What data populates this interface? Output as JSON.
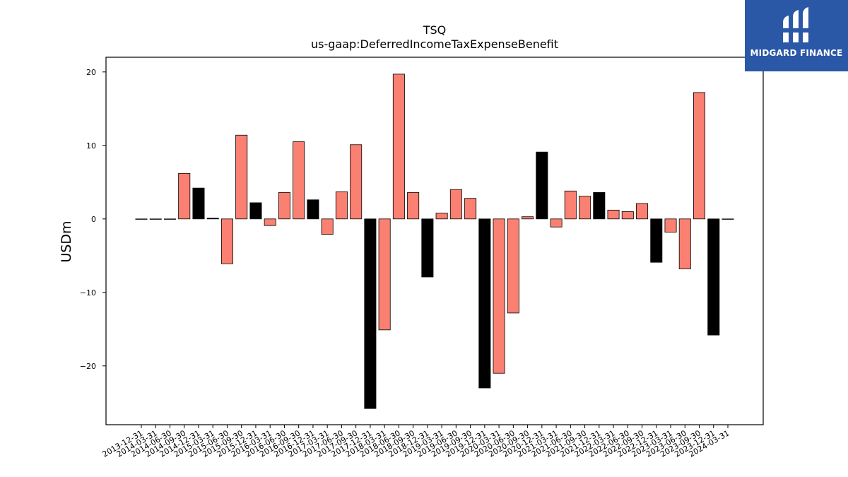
{
  "chart_data": {
    "type": "bar",
    "title": "TSQ",
    "subtitle": "us-gaap:DeferredIncomeTaxExpenseBenefit",
    "xlabel": "",
    "ylabel": "USDm",
    "ylim": [
      -28,
      22
    ],
    "yticks": [
      -20,
      -10,
      0,
      10,
      20
    ],
    "ytick_labels": [
      "−20",
      "−10",
      "0",
      "10",
      "20"
    ],
    "grid": false,
    "legend": "none",
    "categories": [
      "2013-12-31",
      "2014-03-31",
      "2014-06-30",
      "2014-09-30",
      "2014-12-31",
      "2015-03-31",
      "2015-06-30",
      "2015-09-30",
      "2015-12-31",
      "2016-03-31",
      "2016-06-30",
      "2016-09-30",
      "2016-12-31",
      "2017-03-31",
      "2017-06-30",
      "2017-09-30",
      "2017-12-31",
      "2018-03-31",
      "2018-06-30",
      "2018-09-30",
      "2018-12-31",
      "2019-03-31",
      "2019-06-30",
      "2019-09-30",
      "2019-12-31",
      "2020-03-31",
      "2020-06-30",
      "2020-09-30",
      "2020-12-31",
      "2021-03-31",
      "2021-06-30",
      "2021-09-30",
      "2021-12-31",
      "2022-03-31",
      "2022-06-30",
      "2022-09-30",
      "2022-12-31",
      "2023-03-31",
      "2023-06-30",
      "2023-09-30",
      "2023-12-31",
      "2024-03-31"
    ],
    "values": [
      0,
      0,
      0,
      6.2,
      4.2,
      0.1,
      -6.1,
      11.4,
      2.2,
      -0.9,
      3.6,
      10.5,
      2.6,
      -2.1,
      3.7,
      10.1,
      -25.8,
      -15.1,
      19.7,
      3.6,
      -7.9,
      0.8,
      4.0,
      2.8,
      -23.0,
      -21.0,
      -12.8,
      0.3,
      9.1,
      -1.1,
      3.8,
      3.1,
      3.6,
      1.2,
      1.0,
      2.1,
      -5.9,
      -1.8,
      -6.8,
      17.2,
      -15.8,
      0
    ],
    "highlight": [
      false,
      false,
      false,
      false,
      true,
      true,
      false,
      false,
      true,
      false,
      false,
      false,
      true,
      false,
      false,
      false,
      true,
      false,
      false,
      false,
      true,
      false,
      false,
      false,
      true,
      false,
      false,
      false,
      true,
      false,
      false,
      false,
      true,
      false,
      false,
      false,
      true,
      false,
      false,
      false,
      true,
      false
    ],
    "colors": {
      "base": "#fa8072",
      "highlight": "#000000",
      "edge": "#000000"
    }
  },
  "logo": {
    "text": "MIDGARD FINANCE",
    "bg": "#2a57a6"
  }
}
